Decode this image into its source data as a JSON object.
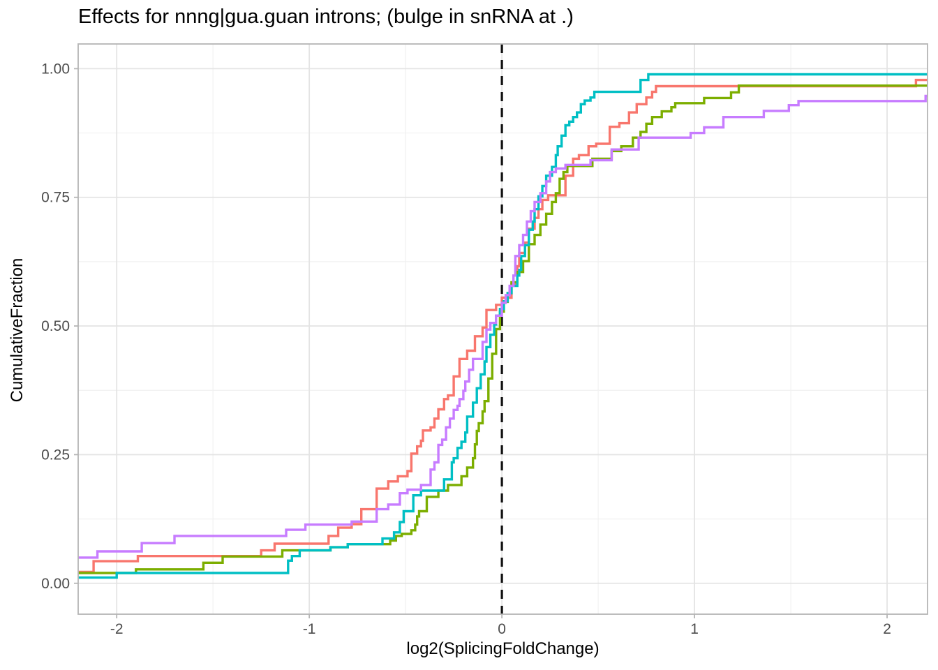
{
  "chart_data": {
    "type": "line",
    "subtype": "ecdf-step",
    "title": "Effects for nnng|gua.guan introns; (bulge in snRNA at .)",
    "xlabel": "log2(SplicingFoldChange)",
    "ylabel": "CumulativeFraction",
    "legend": "none",
    "grid": "on",
    "panel_border_color": "#b5b5b5",
    "major_grid_color": "#e4e4e4",
    "minor_grid_color": "#f1f1f1",
    "tick_color": "#b5b5b5",
    "tick_label_color": "#4d4d4d",
    "axes": {
      "x": {
        "range": [
          -2.2,
          2.21
        ],
        "major_ticks": [
          -2,
          -1,
          0,
          1,
          2
        ],
        "major_tick_labels": [
          "-2",
          "-1",
          "0",
          "1",
          "2"
        ],
        "minor_ticks": [
          -1.5,
          -0.5,
          0.5,
          1.5
        ]
      },
      "y": {
        "range": [
          -0.06,
          1.048
        ],
        "major_ticks": [
          0,
          0.25,
          0.5,
          0.75,
          1.0
        ],
        "major_tick_labels": [
          "0.00",
          "0.25",
          "0.50",
          "0.75",
          "1.00"
        ],
        "minor_ticks": [
          0.125,
          0.375,
          0.625,
          0.875
        ]
      }
    },
    "reference_line": {
      "x": 0,
      "orientation": "vertical",
      "style": "dashed",
      "color": "#111111"
    },
    "series": [
      {
        "name": "salmon",
        "color": "#F8766D",
        "points": [
          [
            -2.2,
            0.022
          ],
          [
            -2.12,
            0.043
          ],
          [
            -1.89,
            0.053
          ],
          [
            -1.25,
            0.064
          ],
          [
            -1.18,
            0.077
          ],
          [
            -0.9,
            0.092
          ],
          [
            -0.85,
            0.108
          ],
          [
            -0.78,
            0.115
          ],
          [
            -0.73,
            0.144
          ],
          [
            -0.65,
            0.184
          ],
          [
            -0.59,
            0.198
          ],
          [
            -0.54,
            0.208
          ],
          [
            -0.49,
            0.218
          ],
          [
            -0.47,
            0.252
          ],
          [
            -0.44,
            0.266
          ],
          [
            -0.42,
            0.277
          ],
          [
            -0.41,
            0.297
          ],
          [
            -0.37,
            0.303
          ],
          [
            -0.35,
            0.32
          ],
          [
            -0.33,
            0.338
          ],
          [
            -0.3,
            0.358
          ],
          [
            -0.28,
            0.365
          ],
          [
            -0.25,
            0.402
          ],
          [
            -0.22,
            0.436
          ],
          [
            -0.18,
            0.452
          ],
          [
            -0.14,
            0.48
          ],
          [
            -0.1,
            0.497
          ],
          [
            -0.08,
            0.531
          ],
          [
            -0.03,
            0.541
          ],
          [
            0.0,
            0.555
          ],
          [
            0.05,
            0.582
          ],
          [
            0.08,
            0.616
          ],
          [
            0.09,
            0.642
          ],
          [
            0.12,
            0.662
          ],
          [
            0.14,
            0.689
          ],
          [
            0.17,
            0.71
          ],
          [
            0.19,
            0.727
          ],
          [
            0.21,
            0.745
          ],
          [
            0.24,
            0.754
          ],
          [
            0.33,
            0.792
          ],
          [
            0.37,
            0.825
          ],
          [
            0.4,
            0.832
          ],
          [
            0.45,
            0.849
          ],
          [
            0.49,
            0.854
          ],
          [
            0.56,
            0.887
          ],
          [
            0.61,
            0.894
          ],
          [
            0.66,
            0.915
          ],
          [
            0.7,
            0.931
          ],
          [
            0.75,
            0.944
          ],
          [
            0.78,
            0.955
          ],
          [
            0.8,
            0.966
          ],
          [
            2.15,
            0.978
          ]
        ]
      },
      {
        "name": "olive",
        "color": "#7CAE00",
        "points": [
          [
            -2.2,
            0.02
          ],
          [
            -1.9,
            0.027
          ],
          [
            -1.55,
            0.04
          ],
          [
            -1.45,
            0.052
          ],
          [
            -1.14,
            0.064
          ],
          [
            -0.89,
            0.07
          ],
          [
            -0.8,
            0.076
          ],
          [
            -0.58,
            0.083
          ],
          [
            -0.55,
            0.092
          ],
          [
            -0.52,
            0.096
          ],
          [
            -0.47,
            0.103
          ],
          [
            -0.45,
            0.114
          ],
          [
            -0.44,
            0.13
          ],
          [
            -0.43,
            0.14
          ],
          [
            -0.39,
            0.168
          ],
          [
            -0.33,
            0.18
          ],
          [
            -0.28,
            0.191
          ],
          [
            -0.21,
            0.208
          ],
          [
            -0.18,
            0.225
          ],
          [
            -0.15,
            0.243
          ],
          [
            -0.14,
            0.27
          ],
          [
            -0.13,
            0.296
          ],
          [
            -0.12,
            0.311
          ],
          [
            -0.1,
            0.334
          ],
          [
            -0.09,
            0.354
          ],
          [
            -0.07,
            0.398
          ],
          [
            -0.05,
            0.446
          ],
          [
            -0.03,
            0.494
          ],
          [
            -0.01,
            0.528
          ],
          [
            0.01,
            0.547
          ],
          [
            0.03,
            0.564
          ],
          [
            0.05,
            0.585
          ],
          [
            0.08,
            0.605
          ],
          [
            0.11,
            0.626
          ],
          [
            0.14,
            0.659
          ],
          [
            0.17,
            0.677
          ],
          [
            0.2,
            0.697
          ],
          [
            0.23,
            0.718
          ],
          [
            0.26,
            0.741
          ],
          [
            0.28,
            0.758
          ],
          [
            0.3,
            0.786
          ],
          [
            0.32,
            0.799
          ],
          [
            0.34,
            0.811
          ],
          [
            0.47,
            0.825
          ],
          [
            0.57,
            0.84
          ],
          [
            0.62,
            0.849
          ],
          [
            0.68,
            0.866
          ],
          [
            0.72,
            0.877
          ],
          [
            0.75,
            0.893
          ],
          [
            0.78,
            0.906
          ],
          [
            0.83,
            0.917
          ],
          [
            0.88,
            0.925
          ],
          [
            0.9,
            0.933
          ],
          [
            1.05,
            0.943
          ],
          [
            1.19,
            0.954
          ],
          [
            1.23,
            0.967
          ]
        ]
      },
      {
        "name": "teal",
        "color": "#00BFC4",
        "points": [
          [
            -2.2,
            0.011
          ],
          [
            -2.0,
            0.02
          ],
          [
            -1.11,
            0.044
          ],
          [
            -1.09,
            0.053
          ],
          [
            -1.05,
            0.064
          ],
          [
            -0.89,
            0.07
          ],
          [
            -0.8,
            0.076
          ],
          [
            -0.62,
            0.087
          ],
          [
            -0.56,
            0.099
          ],
          [
            -0.53,
            0.119
          ],
          [
            -0.51,
            0.14
          ],
          [
            -0.46,
            0.171
          ],
          [
            -0.42,
            0.18
          ],
          [
            -0.3,
            0.202
          ],
          [
            -0.26,
            0.235
          ],
          [
            -0.25,
            0.243
          ],
          [
            -0.23,
            0.263
          ],
          [
            -0.21,
            0.275
          ],
          [
            -0.19,
            0.293
          ],
          [
            -0.18,
            0.324
          ],
          [
            -0.15,
            0.351
          ],
          [
            -0.13,
            0.379
          ],
          [
            -0.11,
            0.406
          ],
          [
            -0.09,
            0.431
          ],
          [
            -0.08,
            0.459
          ],
          [
            -0.06,
            0.483
          ],
          [
            -0.04,
            0.503
          ],
          [
            -0.03,
            0.52
          ],
          [
            -0.01,
            0.533
          ],
          [
            0.01,
            0.548
          ],
          [
            0.03,
            0.564
          ],
          [
            0.05,
            0.578
          ],
          [
            0.08,
            0.598
          ],
          [
            0.09,
            0.609
          ],
          [
            0.1,
            0.636
          ],
          [
            0.12,
            0.657
          ],
          [
            0.14,
            0.687
          ],
          [
            0.16,
            0.703
          ],
          [
            0.17,
            0.727
          ],
          [
            0.19,
            0.752
          ],
          [
            0.21,
            0.772
          ],
          [
            0.23,
            0.792
          ],
          [
            0.26,
            0.809
          ],
          [
            0.28,
            0.832
          ],
          [
            0.29,
            0.849
          ],
          [
            0.31,
            0.87
          ],
          [
            0.33,
            0.89
          ],
          [
            0.35,
            0.897
          ],
          [
            0.37,
            0.906
          ],
          [
            0.39,
            0.915
          ],
          [
            0.41,
            0.931
          ],
          [
            0.43,
            0.938
          ],
          [
            0.46,
            0.944
          ],
          [
            0.48,
            0.955
          ],
          [
            0.72,
            0.978
          ],
          [
            0.76,
            0.989
          ]
        ]
      },
      {
        "name": "orchid",
        "color": "#C77CFF",
        "points": [
          [
            -2.2,
            0.05
          ],
          [
            -2.1,
            0.062
          ],
          [
            -1.87,
            0.078
          ],
          [
            -1.7,
            0.092
          ],
          [
            -1.12,
            0.104
          ],
          [
            -1.02,
            0.114
          ],
          [
            -0.78,
            0.12
          ],
          [
            -0.65,
            0.144
          ],
          [
            -0.59,
            0.153
          ],
          [
            -0.53,
            0.175
          ],
          [
            -0.49,
            0.182
          ],
          [
            -0.42,
            0.191
          ],
          [
            -0.37,
            0.221
          ],
          [
            -0.35,
            0.235
          ],
          [
            -0.33,
            0.269
          ],
          [
            -0.31,
            0.279
          ],
          [
            -0.29,
            0.303
          ],
          [
            -0.27,
            0.32
          ],
          [
            -0.25,
            0.337
          ],
          [
            -0.23,
            0.345
          ],
          [
            -0.22,
            0.358
          ],
          [
            -0.2,
            0.374
          ],
          [
            -0.19,
            0.392
          ],
          [
            -0.17,
            0.415
          ],
          [
            -0.15,
            0.436
          ],
          [
            -0.1,
            0.469
          ],
          [
            -0.08,
            0.493
          ],
          [
            -0.06,
            0.506
          ],
          [
            -0.03,
            0.52
          ],
          [
            0.0,
            0.545
          ],
          [
            0.02,
            0.56
          ],
          [
            0.04,
            0.578
          ],
          [
            0.06,
            0.598
          ],
          [
            0.07,
            0.636
          ],
          [
            0.09,
            0.657
          ],
          [
            0.11,
            0.677
          ],
          [
            0.13,
            0.703
          ],
          [
            0.15,
            0.723
          ],
          [
            0.17,
            0.741
          ],
          [
            0.2,
            0.758
          ],
          [
            0.23,
            0.781
          ],
          [
            0.25,
            0.799
          ],
          [
            0.28,
            0.806
          ],
          [
            0.33,
            0.813
          ],
          [
            0.46,
            0.822
          ],
          [
            0.57,
            0.843
          ],
          [
            0.71,
            0.866
          ],
          [
            0.98,
            0.875
          ],
          [
            1.05,
            0.886
          ],
          [
            1.15,
            0.906
          ],
          [
            1.36,
            0.918
          ],
          [
            1.49,
            0.929
          ],
          [
            1.54,
            0.937
          ],
          [
            2.2,
            0.947
          ]
        ]
      }
    ]
  }
}
